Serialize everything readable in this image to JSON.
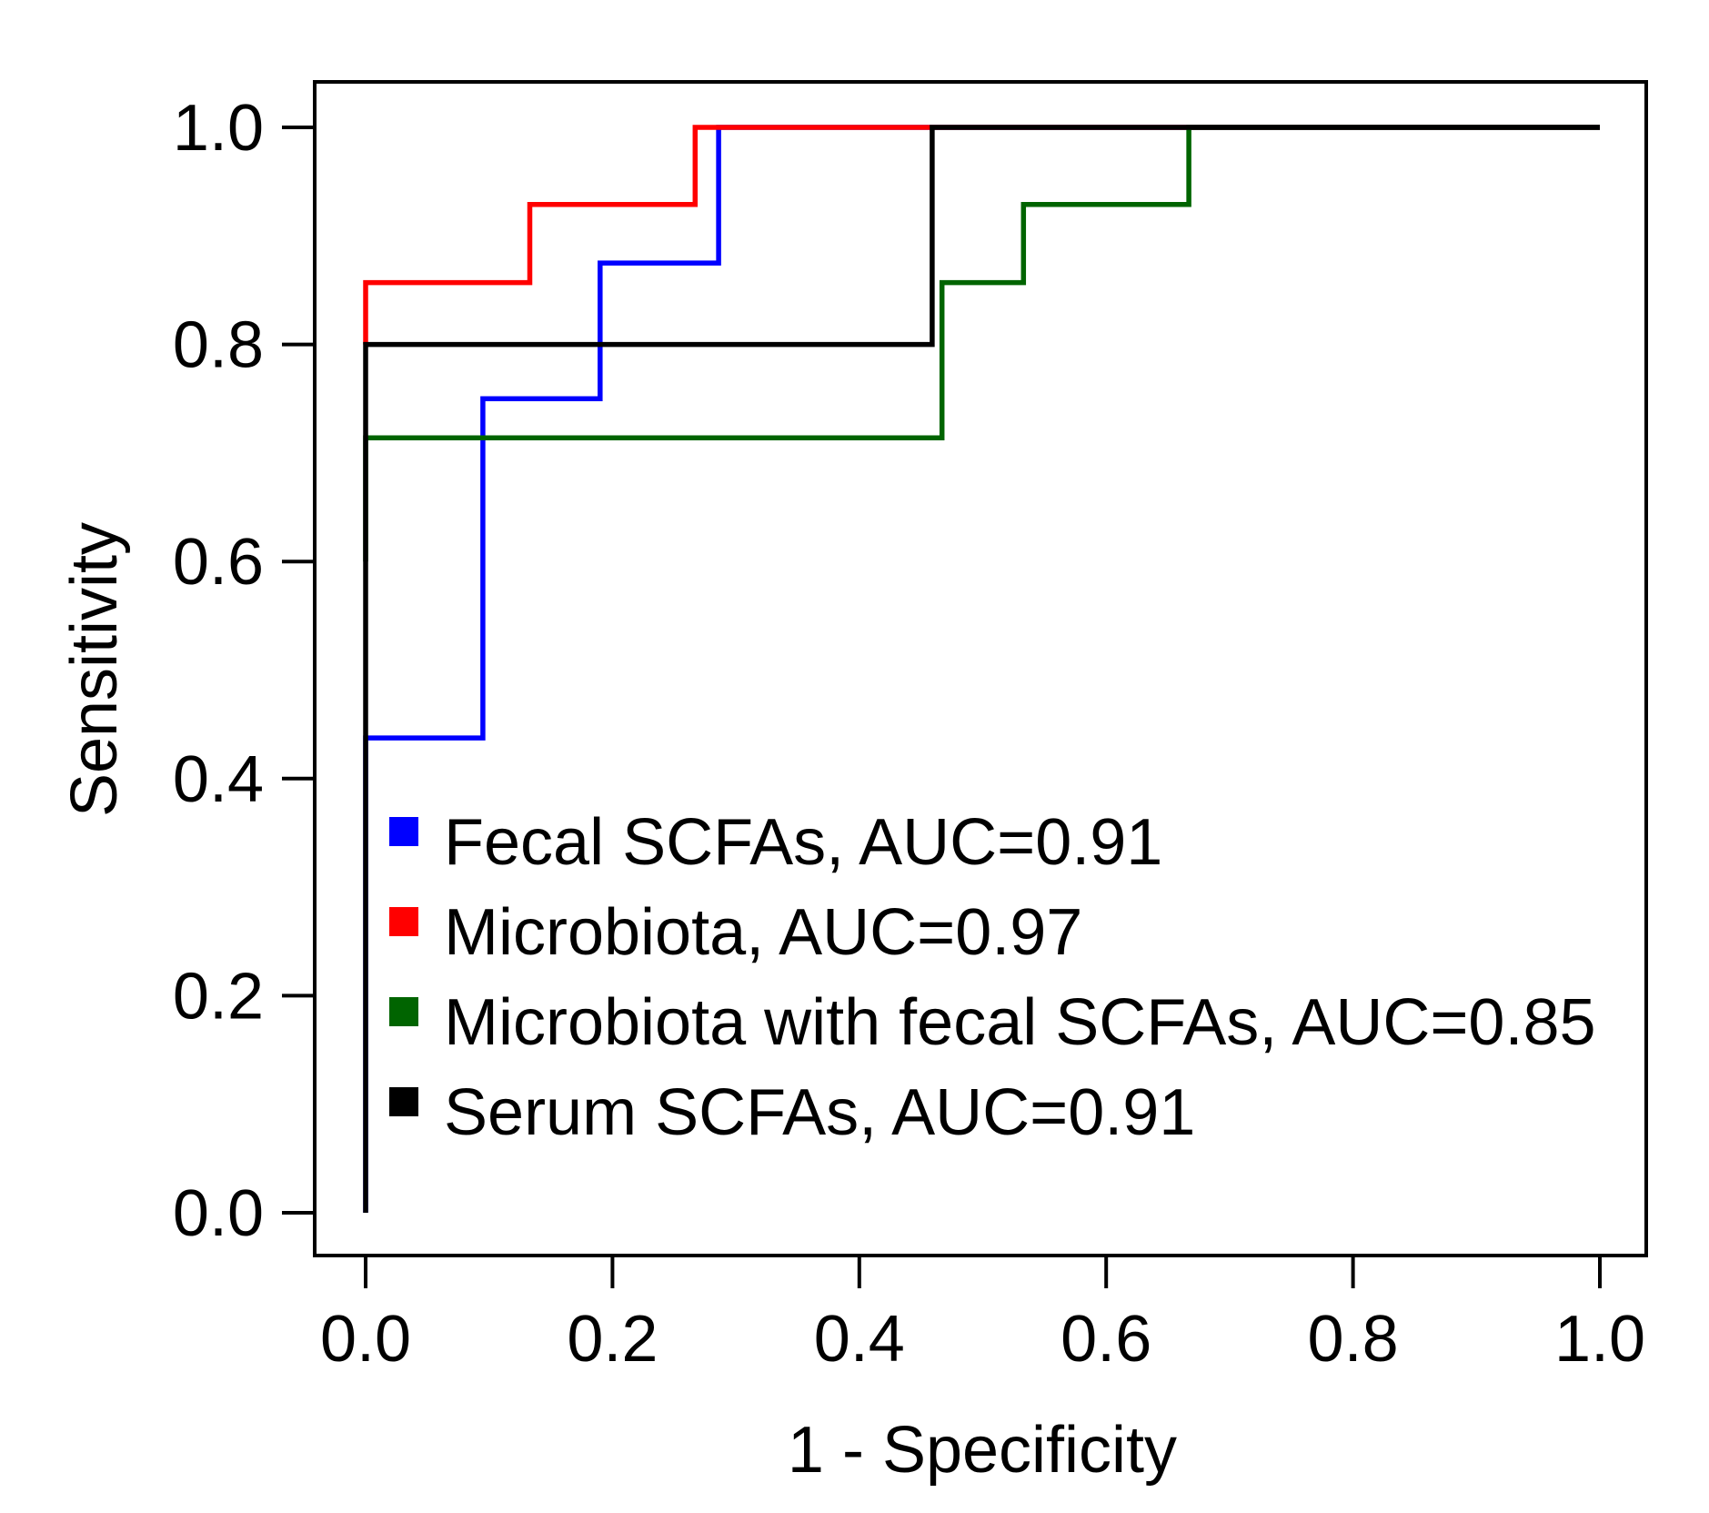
{
  "chart_data": {
    "type": "line",
    "xlabel": "1 - Specificity",
    "ylabel": "Sensitivity",
    "xlim": [
      0,
      1
    ],
    "ylim": [
      0,
      1
    ],
    "xticks": [
      "0.0",
      "0.2",
      "0.4",
      "0.6",
      "0.8",
      "1.0"
    ],
    "yticks": [
      "0.0",
      "0.2",
      "0.4",
      "0.6",
      "0.8",
      "1.0"
    ],
    "grid": false,
    "legend_position": "bottom-left",
    "series": [
      {
        "name": "Fecal SCFAs, AUC=0.91",
        "color": "#0000ff",
        "x": [
          0,
          0,
          0.095,
          0.095,
          0.19,
          0.19,
          0.286,
          0.286,
          1
        ],
        "y": [
          0,
          0.4375,
          0.4375,
          0.75,
          0.75,
          0.875,
          0.875,
          1,
          1
        ]
      },
      {
        "name": "Microbiota, AUC=0.97",
        "color": "#ff0000",
        "x": [
          0,
          0,
          0.133,
          0.133,
          0.267,
          0.267,
          1
        ],
        "y": [
          0.8,
          0.857,
          0.857,
          0.929,
          0.929,
          1,
          1
        ]
      },
      {
        "name": "Microbiota with fecal SCFAs, AUC=0.85",
        "color": "#006400",
        "x": [
          0,
          0,
          0.467,
          0.467,
          0.533,
          0.533,
          0.667,
          0.667,
          1
        ],
        "y": [
          0.6,
          0.714,
          0.714,
          0.857,
          0.857,
          0.929,
          0.929,
          1,
          1
        ]
      },
      {
        "name": "Serum SCFAs, AUC=0.91",
        "color": "#000000",
        "x": [
          0,
          0,
          0.459,
          0.459,
          1
        ],
        "y": [
          0,
          0.8,
          0.8,
          1,
          1
        ]
      }
    ]
  }
}
